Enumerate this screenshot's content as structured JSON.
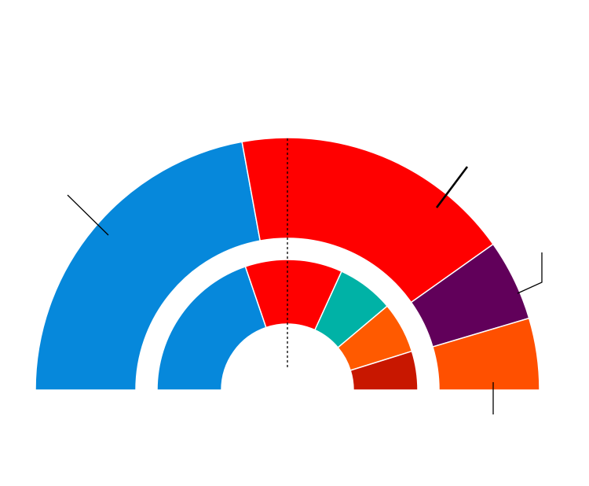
{
  "chart_data": [
    {
      "type": "pie",
      "subtype": "semicircle-donut",
      "ring": "outer",
      "series": [
        {
          "share": 0.4423,
          "color": "#0688db"
        },
        {
          "share": 0.3616,
          "color": "#ff0000"
        },
        {
          "share": 0.1042,
          "color": "#61005a"
        },
        {
          "share": 0.0919,
          "color": "#ff5000"
        }
      ]
    },
    {
      "type": "pie",
      "subtype": "semicircle-donut",
      "ring": "inner",
      "series": [
        {
          "share": 0.3953,
          "color": "#0688db"
        },
        {
          "share": 0.2412,
          "color": "#ff0000"
        },
        {
          "share": 0.1411,
          "color": "#00b2a6"
        },
        {
          "share": 0.1262,
          "color": "#ff5a00"
        },
        {
          "share": 0.0962,
          "color": "#c81700"
        }
      ]
    }
  ],
  "majority_line": {
    "style": "dashed",
    "position": "center"
  }
}
